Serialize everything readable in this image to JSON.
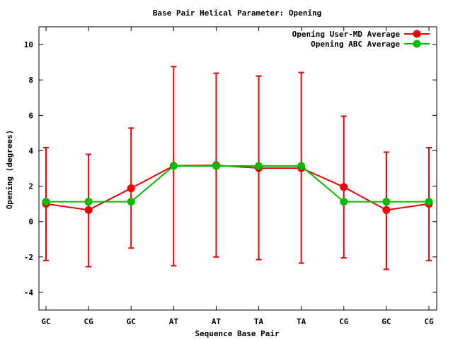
{
  "chart_data": {
    "type": "line",
    "title": "Base Pair Helical Parameter: Opening",
    "xlabel": "Sequence Base Pair",
    "ylabel": "Opening (degrees)",
    "categories": [
      "GC",
      "CG",
      "GC",
      "AT",
      "AT",
      "TA",
      "TA",
      "CG",
      "GC",
      "CG"
    ],
    "ylim": [
      -5,
      11
    ],
    "yticks": [
      -4,
      -2,
      0,
      2,
      4,
      6,
      8,
      10
    ],
    "grid": false,
    "legend_position": "top-right",
    "series": [
      {
        "name": "Opening User-MD Average",
        "color": "#ee0000",
        "values": [
          1.0,
          0.65,
          1.88,
          3.15,
          3.18,
          3.02,
          3.02,
          1.95,
          0.65,
          1.0
        ],
        "error_low": [
          -2.2,
          -2.55,
          -1.5,
          -2.5,
          -2.0,
          -2.15,
          -2.35,
          -2.05,
          -2.7,
          -2.2
        ],
        "error_high": [
          4.18,
          3.8,
          5.28,
          8.75,
          8.38,
          8.22,
          8.42,
          5.95,
          3.92,
          4.18
        ]
      },
      {
        "name": "Opening ABC Average",
        "color": "#00bb00",
        "values": [
          1.12,
          1.12,
          1.12,
          3.14,
          3.14,
          3.14,
          3.14,
          1.12,
          1.12,
          1.12
        ]
      }
    ]
  }
}
